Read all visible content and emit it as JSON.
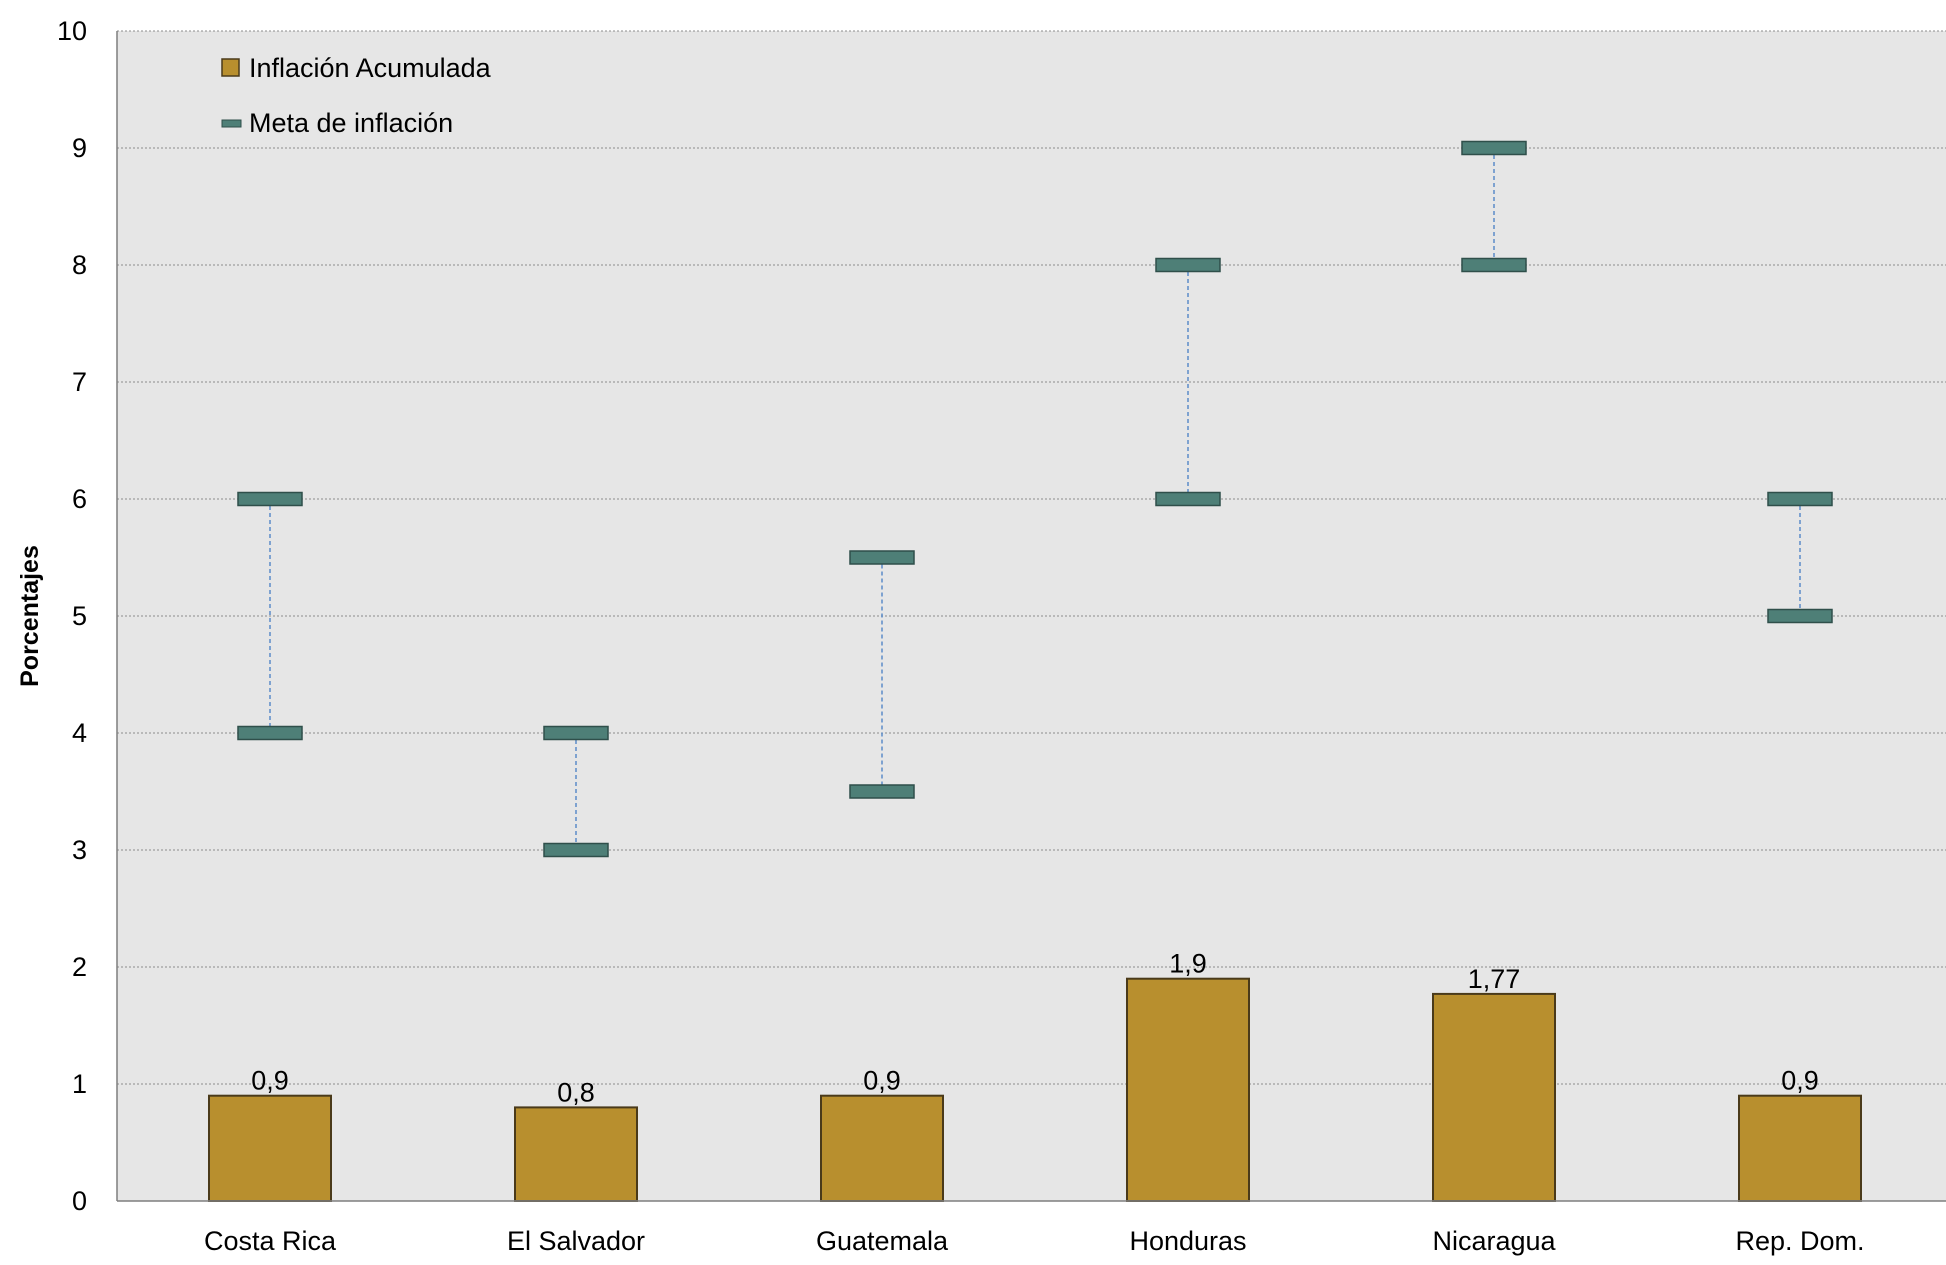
{
  "chart_data": {
    "type": "bar",
    "title": "",
    "xlabel": "",
    "ylabel": "Porcentajes",
    "ylim": [
      0,
      10
    ],
    "yticks": [
      0,
      1,
      2,
      3,
      4,
      5,
      6,
      7,
      8,
      9,
      10
    ],
    "grid": true,
    "legend_position": "top-left",
    "categories": [
      "Costa Rica",
      "El Salvador",
      "Guatemala",
      "Honduras",
      "Nicaragua",
      "Rep. Dom."
    ],
    "series": [
      {
        "name": "Inflación Acumulada",
        "kind": "bar",
        "color": "#B88F2E",
        "values": [
          0.9,
          0.8,
          0.9,
          1.9,
          1.77,
          0.9
        ],
        "labels": [
          "0,9",
          "0,8",
          "0,9",
          "1,9",
          "1,77",
          "0,9"
        ]
      },
      {
        "name": "Meta de inflación",
        "kind": "range",
        "color": "#4E7F77",
        "low": [
          4,
          3,
          3.5,
          6,
          8,
          5
        ],
        "high": [
          6,
          4,
          5.5,
          8,
          9,
          6
        ]
      }
    ],
    "colors": {
      "plot_background": "#E6E6E6",
      "gridline": "#8C8C8C",
      "connector": "#5B8CC9",
      "bar_border": "#4A3A1A",
      "marker_border": "#2F4F4A"
    }
  }
}
